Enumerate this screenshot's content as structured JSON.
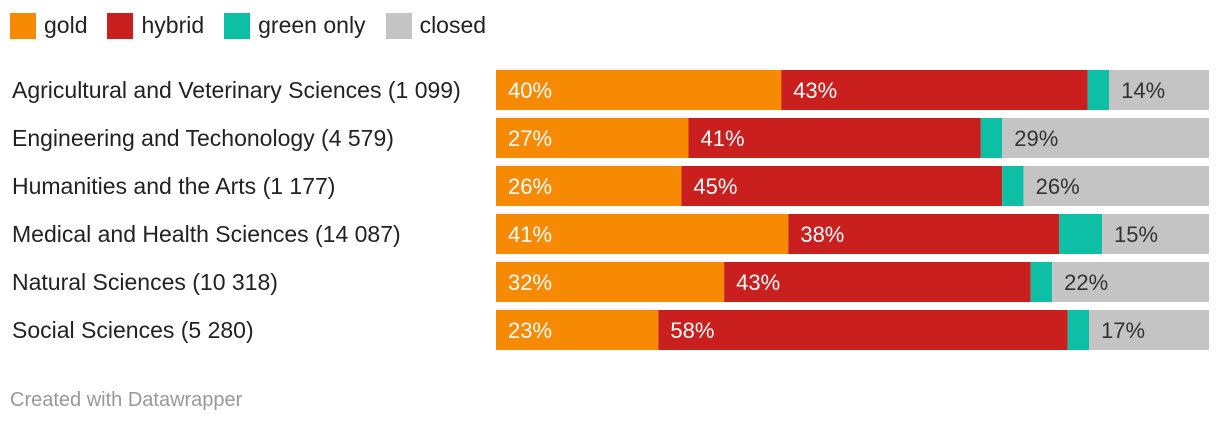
{
  "chart_data": {
    "type": "bar",
    "stacked": true,
    "orientation": "horizontal",
    "legend_placement": "top-left",
    "categories": [
      "Agricultural and Veterinary Sciences (1 099)",
      "Engineering and Techonology (4 579)",
      "Humanities and the Arts (1 177)",
      "Medical and Health Sciences (14 087)",
      "Natural Sciences (10 318)",
      "Social Sciences (5 280)"
    ],
    "series": [
      {
        "name": "gold",
        "color": "#F68B03",
        "values": [
          40,
          27,
          26,
          41,
          32,
          23
        ],
        "labels": [
          "40%",
          "27%",
          "26%",
          "41%",
          "32%",
          "23%"
        ]
      },
      {
        "name": "hybrid",
        "color": "#C91F1F",
        "values": [
          43,
          41,
          45,
          38,
          43,
          58
        ],
        "labels": [
          "43%",
          "41%",
          "45%",
          "38%",
          "43%",
          "58%"
        ]
      },
      {
        "name": "green only",
        "color": "#0DBFA5",
        "values": [
          3,
          3,
          3,
          6,
          3,
          3
        ],
        "labels": [
          "",
          "",
          "",
          "",
          "",
          ""
        ]
      },
      {
        "name": "closed",
        "color": "#C4C4C4",
        "values": [
          14,
          29,
          26,
          15,
          22,
          17
        ],
        "labels": [
          "14%",
          "29%",
          "26%",
          "15%",
          "22%",
          "17%"
        ]
      }
    ]
  },
  "footer": "Created with Datawrapper"
}
